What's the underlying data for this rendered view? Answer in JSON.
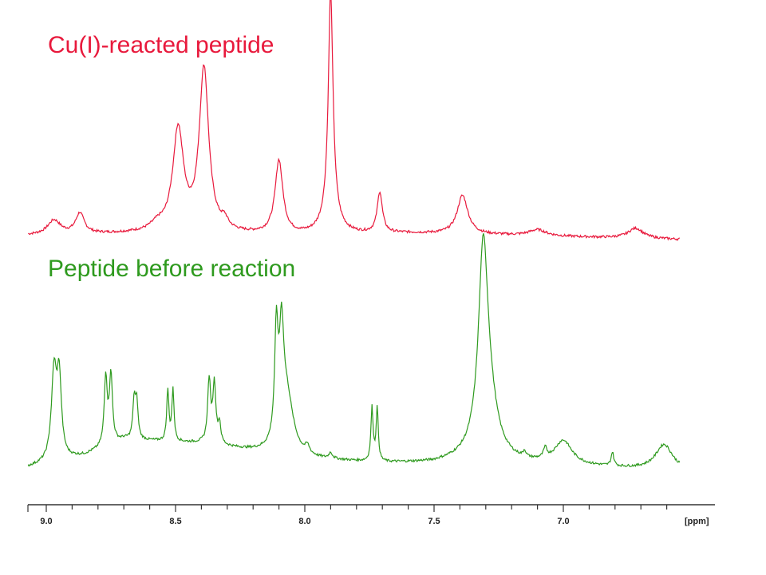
{
  "chart_data": {
    "type": "line",
    "xlabel": "[ppm]",
    "x_reversed": true,
    "xlim": [
      9.07,
      6.55
    ],
    "tick_labels": [
      "9.0",
      "8.5",
      "8.0",
      "7.5",
      "7.0"
    ],
    "tick_values": [
      9.0,
      8.5,
      8.0,
      7.5,
      7.0
    ],
    "grid": false,
    "series": [
      {
        "name": "Cu(I)-reacted peptide",
        "color": "#e8193c",
        "baseline": [
          [
            9.07,
            0.02
          ],
          [
            8.6,
            0.03
          ],
          [
            8.0,
            0.02
          ],
          [
            7.6,
            0.03
          ],
          [
            7.2,
            0.02
          ],
          [
            6.55,
            0.0
          ]
        ],
        "peaks": [
          {
            "ppm": 8.97,
            "height": 0.07,
            "width": 0.03
          },
          {
            "ppm": 8.87,
            "height": 0.1,
            "width": 0.02
          },
          {
            "ppm": 8.57,
            "height": 0.03,
            "width": 0.03
          },
          {
            "ppm": 8.49,
            "height": 0.5,
            "width": 0.025
          },
          {
            "ppm": 8.39,
            "height": 0.8,
            "width": 0.022
          },
          {
            "ppm": 8.31,
            "height": 0.04,
            "width": 0.015
          },
          {
            "ppm": 8.1,
            "height": 0.36,
            "width": 0.018
          },
          {
            "ppm": 7.9,
            "height": 1.0,
            "width": 0.01
          },
          {
            "ppm": 7.9,
            "height": 0.2,
            "width": 0.025
          },
          {
            "ppm": 7.71,
            "height": 0.2,
            "width": 0.012
          },
          {
            "ppm": 7.39,
            "height": 0.19,
            "width": 0.025
          },
          {
            "ppm": 7.1,
            "height": 0.03,
            "width": 0.04
          },
          {
            "ppm": 6.72,
            "height": 0.05,
            "width": 0.035
          }
        ]
      },
      {
        "name": "Peptide before reaction",
        "color": "#2e9a1e",
        "baseline": [
          [
            9.07,
            0.02
          ],
          [
            8.85,
            0.08
          ],
          [
            8.7,
            0.16
          ],
          [
            8.4,
            0.14
          ],
          [
            8.2,
            0.1
          ],
          [
            8.0,
            0.06
          ],
          [
            7.7,
            0.04
          ],
          [
            7.5,
            0.04
          ],
          [
            7.35,
            0.06
          ],
          [
            7.2,
            0.04
          ],
          [
            6.55,
            0.0
          ]
        ],
        "peaks": [
          {
            "ppm": 8.97,
            "height": 0.45,
            "width": 0.012
          },
          {
            "ppm": 8.95,
            "height": 0.4,
            "width": 0.01
          },
          {
            "ppm": 8.77,
            "height": 0.35,
            "width": 0.007
          },
          {
            "ppm": 8.75,
            "height": 0.35,
            "width": 0.007
          },
          {
            "ppm": 8.66,
            "height": 0.2,
            "width": 0.006
          },
          {
            "ppm": 8.65,
            "height": 0.18,
            "width": 0.006
          },
          {
            "ppm": 8.53,
            "height": 0.26,
            "width": 0.005
          },
          {
            "ppm": 8.51,
            "height": 0.26,
            "width": 0.005
          },
          {
            "ppm": 8.37,
            "height": 0.32,
            "width": 0.007
          },
          {
            "ppm": 8.35,
            "height": 0.3,
            "width": 0.007
          },
          {
            "ppm": 8.33,
            "height": 0.1,
            "width": 0.006
          },
          {
            "ppm": 8.11,
            "height": 0.55,
            "width": 0.008
          },
          {
            "ppm": 8.09,
            "height": 0.5,
            "width": 0.01
          },
          {
            "ppm": 8.07,
            "height": 0.3,
            "width": 0.03
          },
          {
            "ppm": 7.99,
            "height": 0.04,
            "width": 0.01
          },
          {
            "ppm": 7.9,
            "height": 0.03,
            "width": 0.008
          },
          {
            "ppm": 7.74,
            "height": 0.27,
            "width": 0.005
          },
          {
            "ppm": 7.72,
            "height": 0.27,
            "width": 0.005
          },
          {
            "ppm": 7.31,
            "height": 0.95,
            "width": 0.022
          },
          {
            "ppm": 7.29,
            "height": 0.25,
            "width": 0.04
          },
          {
            "ppm": 7.15,
            "height": 0.03,
            "width": 0.006
          },
          {
            "ppm": 7.07,
            "height": 0.05,
            "width": 0.008
          },
          {
            "ppm": 7.0,
            "height": 0.12,
            "width": 0.04
          },
          {
            "ppm": 6.81,
            "height": 0.07,
            "width": 0.006
          },
          {
            "ppm": 6.61,
            "height": 0.13,
            "width": 0.04
          }
        ]
      }
    ]
  },
  "labels": {
    "top": "Cu(I)-reacted peptide",
    "bottom": "Peptide before reaction",
    "top_color": "#e8193c",
    "bottom_color": "#2e9a1e"
  }
}
